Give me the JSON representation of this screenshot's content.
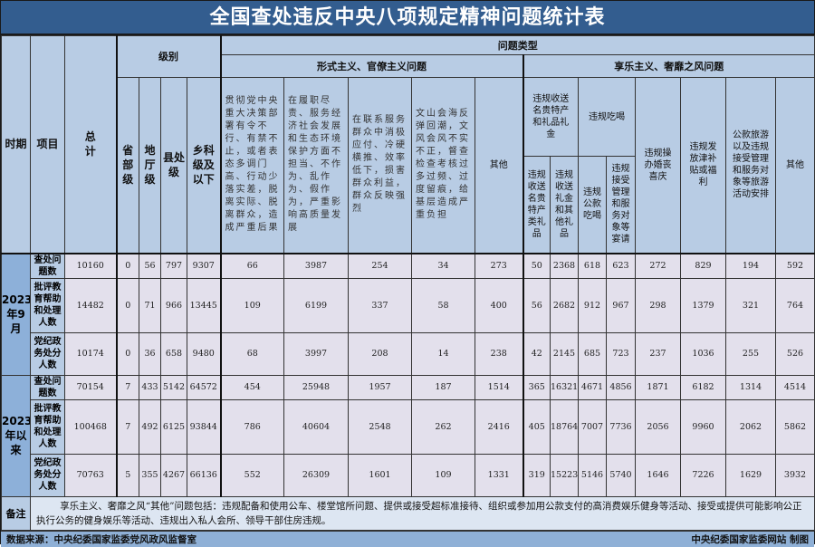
{
  "title": "全国查处违反中央八项规定精神问题统计表",
  "header": {
    "period": "时期",
    "item": "项目",
    "total": "总计",
    "level": "级别",
    "levels": [
      "省部级",
      "地厅级",
      "县处级",
      "乡科级及以下"
    ],
    "problem_type": "问题类型",
    "formalism": "形式主义、官僚主义问题",
    "formalism_cols": [
      "贯彻党中央重大决策部署有令不行、有禁不止，或者表态多调门高、行动少落实差，脱离实际、脱离群众，造成严重后果",
      "在履职尽责、服务经济社会发展和生态环境保护方面不担当、不作为、乱作为、假作为，严重影响高质量发展",
      "在联系服务群众中消极应付、冷硬横推、效率低下，损害群众利益，群众反映强烈",
      "文山会海反弹回潮，文风会风不实不正，督查检查考核过多过频、过度留痕，给基层造成严重负担",
      "其他"
    ],
    "hedonism": "享乐主义、奢靡之风问题",
    "gifts": "违规收送名贵特产和礼品礼金",
    "gifts_sub": [
      "违规收送名贵特产类礼品",
      "违规收送礼金和其他礼品"
    ],
    "dining": "违规吃喝",
    "dining_sub": [
      "违规公款吃喝",
      "违规接受管理和服务对象等宴请"
    ],
    "weddings": "违规操办婚丧喜庆",
    "subsidies": "违规发放津补贴或福利",
    "travel": "公款旅游以及违规接受管理和服务对象等旅游活动安排",
    "other": "其他"
  },
  "periods": [
    {
      "label": "2023年9月",
      "rows": [
        {
          "item": "查处问题数",
          "values": [
            10160,
            0,
            56,
            797,
            9307,
            66,
            3987,
            254,
            34,
            273,
            50,
            2368,
            618,
            623,
            272,
            829,
            194,
            592
          ]
        },
        {
          "item": "批评教育帮助和处理人数",
          "values": [
            14482,
            0,
            71,
            966,
            13445,
            109,
            6199,
            337,
            58,
            400,
            56,
            2682,
            912,
            967,
            298,
            1379,
            321,
            764
          ]
        },
        {
          "item": "党纪政务处分人数",
          "values": [
            10174,
            0,
            36,
            658,
            9480,
            68,
            3997,
            208,
            14,
            238,
            42,
            2145,
            685,
            723,
            237,
            1036,
            255,
            526
          ]
        }
      ]
    },
    {
      "label": "2023年以来",
      "rows": [
        {
          "item": "查处问题数",
          "values": [
            70154,
            7,
            433,
            5142,
            64572,
            454,
            25948,
            1957,
            187,
            1514,
            365,
            16321,
            4671,
            4856,
            1871,
            6182,
            1314,
            4514
          ]
        },
        {
          "item": "批评教育帮助和处理人数",
          "values": [
            100468,
            7,
            492,
            6125,
            93844,
            786,
            40604,
            2548,
            262,
            2416,
            405,
            18764,
            7007,
            7736,
            2056,
            9960,
            2062,
            5862
          ]
        },
        {
          "item": "党纪政务处分人数",
          "values": [
            70763,
            5,
            355,
            4267,
            66136,
            552,
            26309,
            1601,
            109,
            1331,
            319,
            15223,
            5146,
            5740,
            1646,
            7226,
            1629,
            3932
          ]
        }
      ]
    }
  ],
  "note": {
    "label": "备注",
    "text": "享乐主义、奢靡之风“其他”问题包括：违规配备和使用公车、楼堂馆所问题、提供或接受超标准接待、组织或参加用公款支付的高消费娱乐健身等活动、接受或提供可能影响公正执行公务的健身娱乐等活动、违规出入私人会所、领导干部住房违规。"
  },
  "footer": {
    "source": "数据来源：中央纪委国家监委党风政风监督室",
    "credit": "中央纪委国家监委网站 制图"
  },
  "colors": {
    "title_bg": "#335d8f",
    "header_bg": "#b8cce4",
    "cell_bg": "#e3e0ec",
    "period_bg": "#8db0d9"
  }
}
